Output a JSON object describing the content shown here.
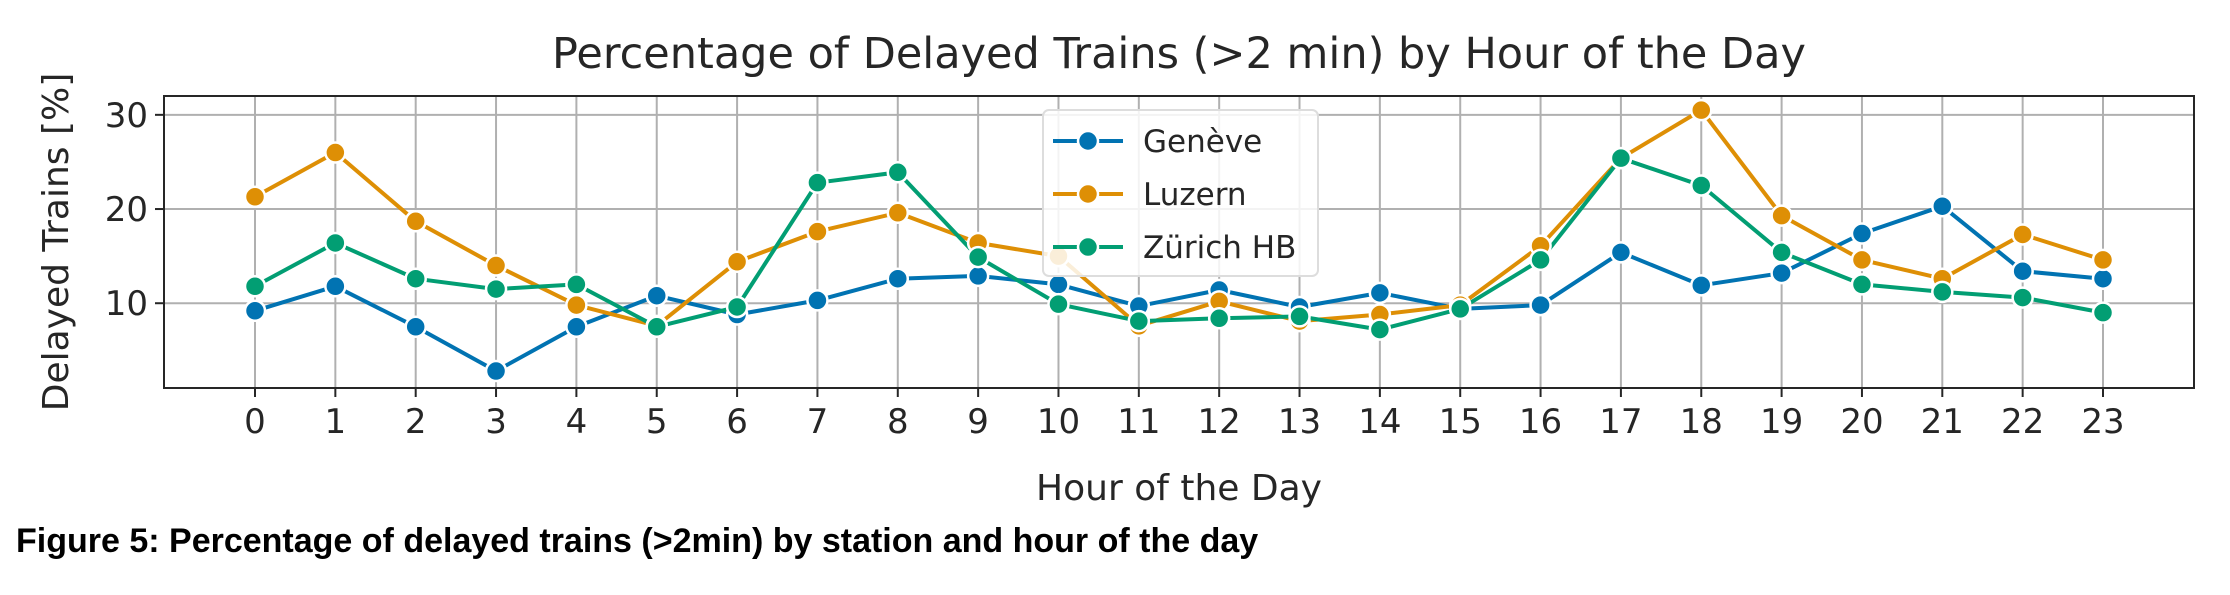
{
  "chart_data": {
    "type": "line",
    "title": "Percentage of Delayed Trains (>2 min) by Hour of the Day",
    "xlabel": "Hour of the Day",
    "ylabel": "Delayed Trains [%]",
    "x": [
      0,
      1,
      2,
      3,
      4,
      5,
      6,
      7,
      8,
      9,
      10,
      11,
      12,
      13,
      14,
      15,
      16,
      17,
      18,
      19,
      20,
      21,
      22,
      23
    ],
    "y_ticks": [
      10,
      20,
      30
    ],
    "ylim": [
      1,
      32
    ],
    "grid": true,
    "legend_position": "top-center",
    "series": [
      {
        "name": "Genève",
        "color": "#0173b2",
        "values": [
          9.2,
          11.8,
          7.5,
          2.8,
          7.5,
          10.8,
          8.8,
          10.3,
          12.6,
          12.9,
          12.0,
          9.7,
          11.4,
          9.6,
          11.1,
          9.4,
          9.8,
          15.4,
          11.9,
          13.2,
          17.4,
          20.3,
          13.4,
          12.6
        ]
      },
      {
        "name": "Luzern",
        "color": "#de8f05",
        "values": [
          21.3,
          26.0,
          18.7,
          14.0,
          9.8,
          7.6,
          14.4,
          17.6,
          19.6,
          16.4,
          15.0,
          7.6,
          10.2,
          8.1,
          8.8,
          9.8,
          16.1,
          25.4,
          30.5,
          19.3,
          14.6,
          12.6,
          17.3,
          14.6
        ]
      },
      {
        "name": "Zürich HB",
        "color": "#029e73",
        "values": [
          11.8,
          16.4,
          12.6,
          11.5,
          12.0,
          7.5,
          9.6,
          22.8,
          23.9,
          14.9,
          9.9,
          8.1,
          8.4,
          8.6,
          7.2,
          9.4,
          14.6,
          25.4,
          22.5,
          15.4,
          12.0,
          11.2,
          10.6,
          9.0
        ]
      }
    ]
  },
  "caption": "Figure 5: Percentage of delayed trains (>2min) by station and hour of the day"
}
